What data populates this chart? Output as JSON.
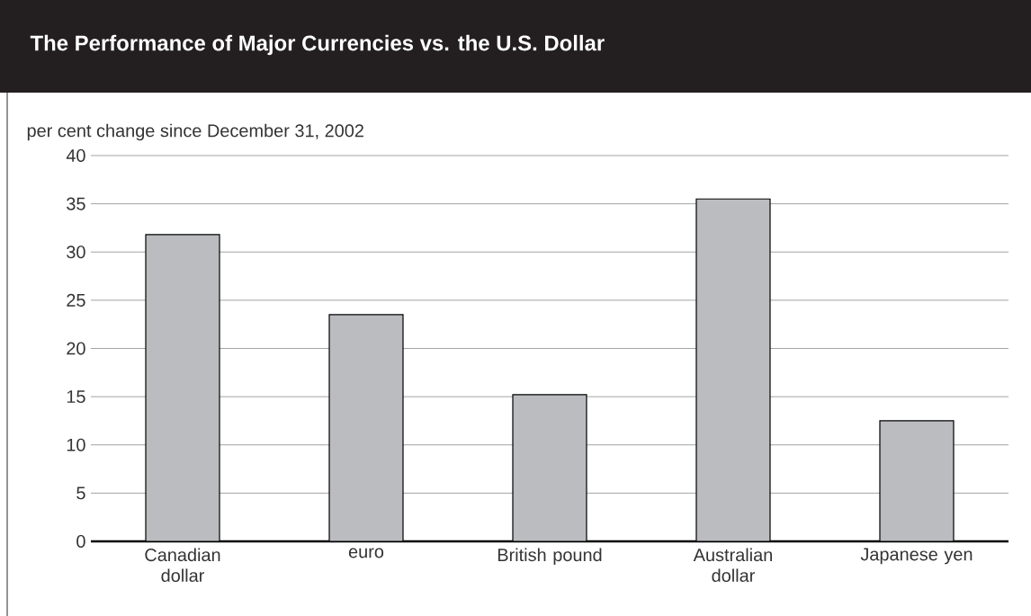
{
  "chart_data": {
    "type": "bar",
    "title": "The Performance of Major Currencies vs. the U.S. Dollar",
    "ylabel": "per cent change since December 31, 2002",
    "categories": [
      "Canadian dollar",
      "euro",
      "British pound",
      "Australian dollar",
      "Japanese yen"
    ],
    "values": [
      31.8,
      23.5,
      15.2,
      35.5,
      12.5
    ],
    "color": "#bbbcc0",
    "ylim": [
      0,
      40
    ],
    "yticks": [
      0,
      5,
      10,
      15,
      20,
      25,
      30,
      35,
      40
    ],
    "grid": "y"
  }
}
